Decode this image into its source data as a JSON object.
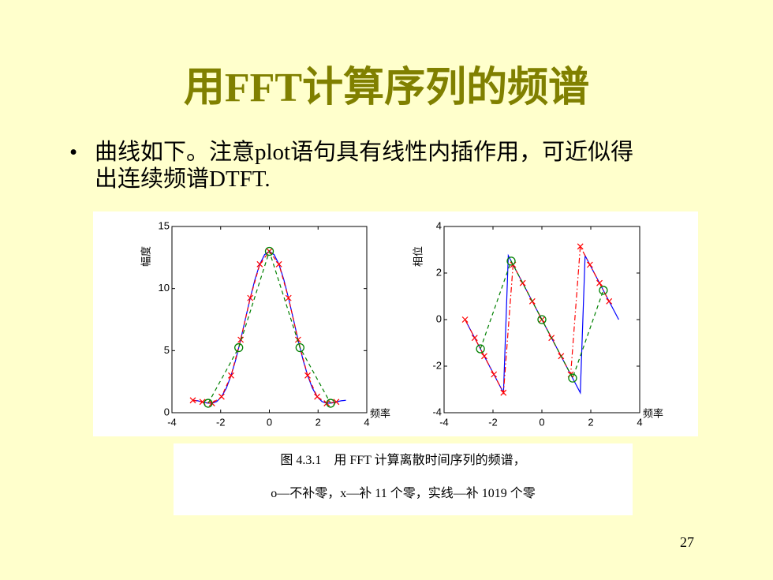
{
  "slide": {
    "title": "用FFT计算序列的频谱",
    "bullet_lines": [
      "曲线如下。注意plot语句具有线性内插作用，可近似得",
      "出连续频谱DTFT."
    ],
    "caption_lines": [
      "图 4.3.1　用 FFT 计算离散时间序列的频谱，",
      "o—不补零，x—补 11 个零，实线—补 1019 个零"
    ],
    "page_number": "27"
  },
  "chart_data": [
    {
      "type": "line",
      "xlabel": "频率",
      "ylabel": "幅度",
      "xlim": [
        -4,
        4
      ],
      "xticks": [
        -4,
        -2,
        0,
        2,
        4
      ],
      "ylim": [
        0,
        15
      ],
      "yticks": [
        0,
        5,
        10,
        15
      ],
      "series": [
        {
          "color": "#0000ff",
          "dash": "solid",
          "marker": null,
          "x": [
            -3.142,
            -2.945,
            -2.749,
            -2.553,
            -2.356,
            -2.16,
            -1.963,
            -1.767,
            -1.571,
            -1.374,
            -1.178,
            -0.982,
            -0.785,
            -0.589,
            -0.393,
            -0.196,
            0,
            0.196,
            0.393,
            0.589,
            0.785,
            0.982,
            1.178,
            1.374,
            1.571,
            1.767,
            1.963,
            2.16,
            2.356,
            2.553,
            2.749,
            2.945,
            3.142
          ],
          "values": [
            1,
            0.96,
            0.87,
            0.78,
            0.76,
            0.9,
            1.29,
            1.98,
            3,
            4.32,
            5.88,
            7.57,
            9.24,
            10.75,
            11.96,
            12.73,
            13,
            12.73,
            11.96,
            10.75,
            9.24,
            7.57,
            5.88,
            4.32,
            3,
            1.98,
            1.29,
            0.9,
            0.76,
            0.78,
            0.87,
            0.96,
            1
          ]
        },
        {
          "color": "#ff0000",
          "dash": "dash",
          "marker": "x",
          "x": [
            -3.142,
            -2.749,
            -2.356,
            -1.963,
            -1.571,
            -1.178,
            -0.785,
            -0.393,
            0,
            0.393,
            0.785,
            1.178,
            1.571,
            1.963,
            2.356,
            2.749
          ],
          "values": [
            1,
            0.87,
            0.76,
            1.29,
            3,
            5.88,
            9.24,
            11.96,
            13,
            11.96,
            9.24,
            5.88,
            3,
            1.29,
            0.76,
            0.87
          ]
        },
        {
          "color": "#008000",
          "dash": "dash",
          "marker": "o",
          "x": [
            -2.513,
            -1.257,
            0,
            1.257,
            2.513
          ],
          "values": [
            0.76,
            5.24,
            13,
            5.24,
            0.76
          ]
        }
      ]
    },
    {
      "type": "line",
      "xlabel": "频率",
      "ylabel": "相位",
      "xlim": [
        -4,
        4
      ],
      "xticks": [
        -4,
        -2,
        0,
        2,
        4
      ],
      "ylim": [
        -4,
        4
      ],
      "yticks": [
        -4,
        -2,
        0,
        2,
        4
      ],
      "series": [
        {
          "color": "#0000ff",
          "dash": "solid",
          "marker": null,
          "x": [
            -3.142,
            -2.945,
            -2.749,
            -2.553,
            -2.356,
            -2.16,
            -1.963,
            -1.767,
            -1.571,
            -1.374,
            -1.178,
            -0.982,
            -0.785,
            -0.589,
            -0.393,
            -0.196,
            0,
            0.196,
            0.393,
            0.589,
            0.785,
            0.982,
            1.178,
            1.374,
            1.571,
            1.767,
            1.963,
            2.16,
            2.356,
            2.553,
            2.749,
            2.945,
            3.142
          ],
          "values": [
            0,
            -0.393,
            -0.785,
            -1.178,
            -1.571,
            -1.963,
            -2.356,
            -2.749,
            -3.142,
            2.749,
            2.356,
            1.963,
            1.571,
            1.178,
            0.785,
            0.393,
            0,
            -0.393,
            -0.785,
            -1.178,
            -1.571,
            -1.963,
            -2.356,
            -2.749,
            -3.142,
            2.749,
            2.356,
            1.963,
            1.571,
            1.178,
            0.785,
            0.393,
            0
          ]
        },
        {
          "color": "#ff0000",
          "dash": "dashdot",
          "marker": "x",
          "x": [
            -3.142,
            -2.749,
            -2.356,
            -1.963,
            -1.571,
            -1.178,
            -0.785,
            -0.393,
            0,
            0.393,
            0.785,
            1.178,
            1.571,
            1.963,
            2.356,
            2.749
          ],
          "values": [
            0,
            -0.785,
            -1.571,
            -2.356,
            -3.142,
            2.356,
            1.571,
            0.785,
            0,
            -0.785,
            -1.571,
            -2.356,
            3.142,
            2.356,
            1.571,
            0.785
          ]
        },
        {
          "color": "#008000",
          "dash": "dash",
          "marker": "o",
          "x": [
            -2.513,
            -1.257,
            0,
            1.257,
            2.513
          ],
          "values": [
            -1.257,
            2.513,
            0,
            -2.513,
            1.257
          ]
        }
      ]
    }
  ]
}
